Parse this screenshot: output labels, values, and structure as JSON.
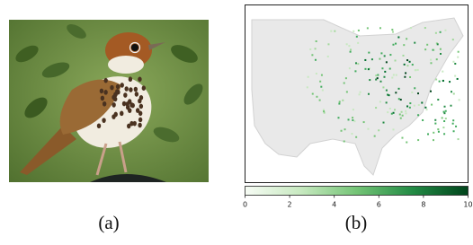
{
  "panels": [
    {
      "caption": "(a)"
    },
    {
      "caption": "(b)",
      "colorbar": {
        "lim": [
          0,
          10
        ],
        "ticks": [
          0,
          2,
          4,
          6,
          8,
          10
        ]
      }
    }
  ]
}
